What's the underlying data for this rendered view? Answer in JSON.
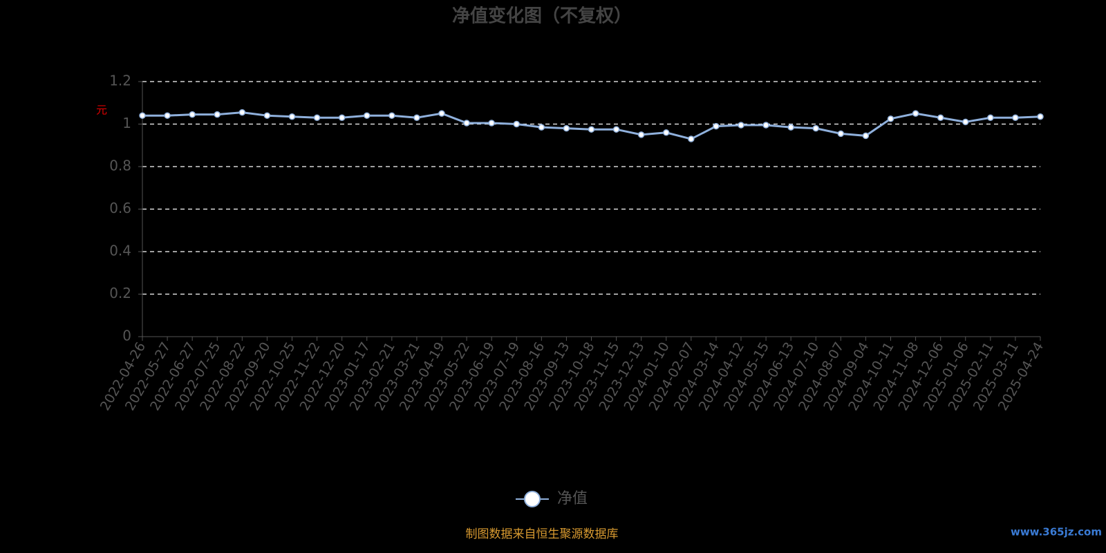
{
  "chart_data": {
    "type": "line",
    "title": "净值变化图（不复权）",
    "y_label": "元",
    "x": [
      "2022-04-26",
      "2022-05-27",
      "2022-06-27",
      "2022-07-25",
      "2022-08-22",
      "2022-09-20",
      "2022-10-25",
      "2022-11-22",
      "2022-12-20",
      "2023-01-17",
      "2023-02-21",
      "2023-03-21",
      "2023-04-19",
      "2023-05-22",
      "2023-06-19",
      "2023-07-19",
      "2023-08-16",
      "2023-09-13",
      "2023-10-18",
      "2023-11-15",
      "2023-12-13",
      "2024-01-10",
      "2024-02-07",
      "2024-03-14",
      "2024-04-12",
      "2024-05-15",
      "2024-06-13",
      "2024-07-10",
      "2024-08-07",
      "2024-09-04",
      "2024-10-11",
      "2024-11-08",
      "2024-12-06",
      "2025-01-06",
      "2025-02-11",
      "2025-03-11",
      "2025-04-24"
    ],
    "series": [
      {
        "name": "净值",
        "color": "#8fb0dc",
        "values": [
          1.04,
          1.04,
          1.045,
          1.045,
          1.055,
          1.04,
          1.035,
          1.03,
          1.03,
          1.04,
          1.04,
          1.03,
          1.05,
          1.005,
          1.005,
          1.0,
          0.985,
          0.98,
          0.975,
          0.975,
          0.95,
          0.96,
          0.93,
          0.99,
          0.995,
          0.995,
          0.985,
          0.98,
          0.955,
          0.945,
          1.025,
          1.05,
          1.03,
          1.01,
          1.03,
          1.03,
          1.035
        ]
      }
    ],
    "ylim": [
      0,
      1.2
    ],
    "yticks": [
      0,
      0.2,
      0.4,
      0.6,
      0.8,
      1,
      1.2
    ],
    "grid": true,
    "source": "制图数据来自恒生聚源数据库",
    "watermark": "www.365jz.com"
  }
}
